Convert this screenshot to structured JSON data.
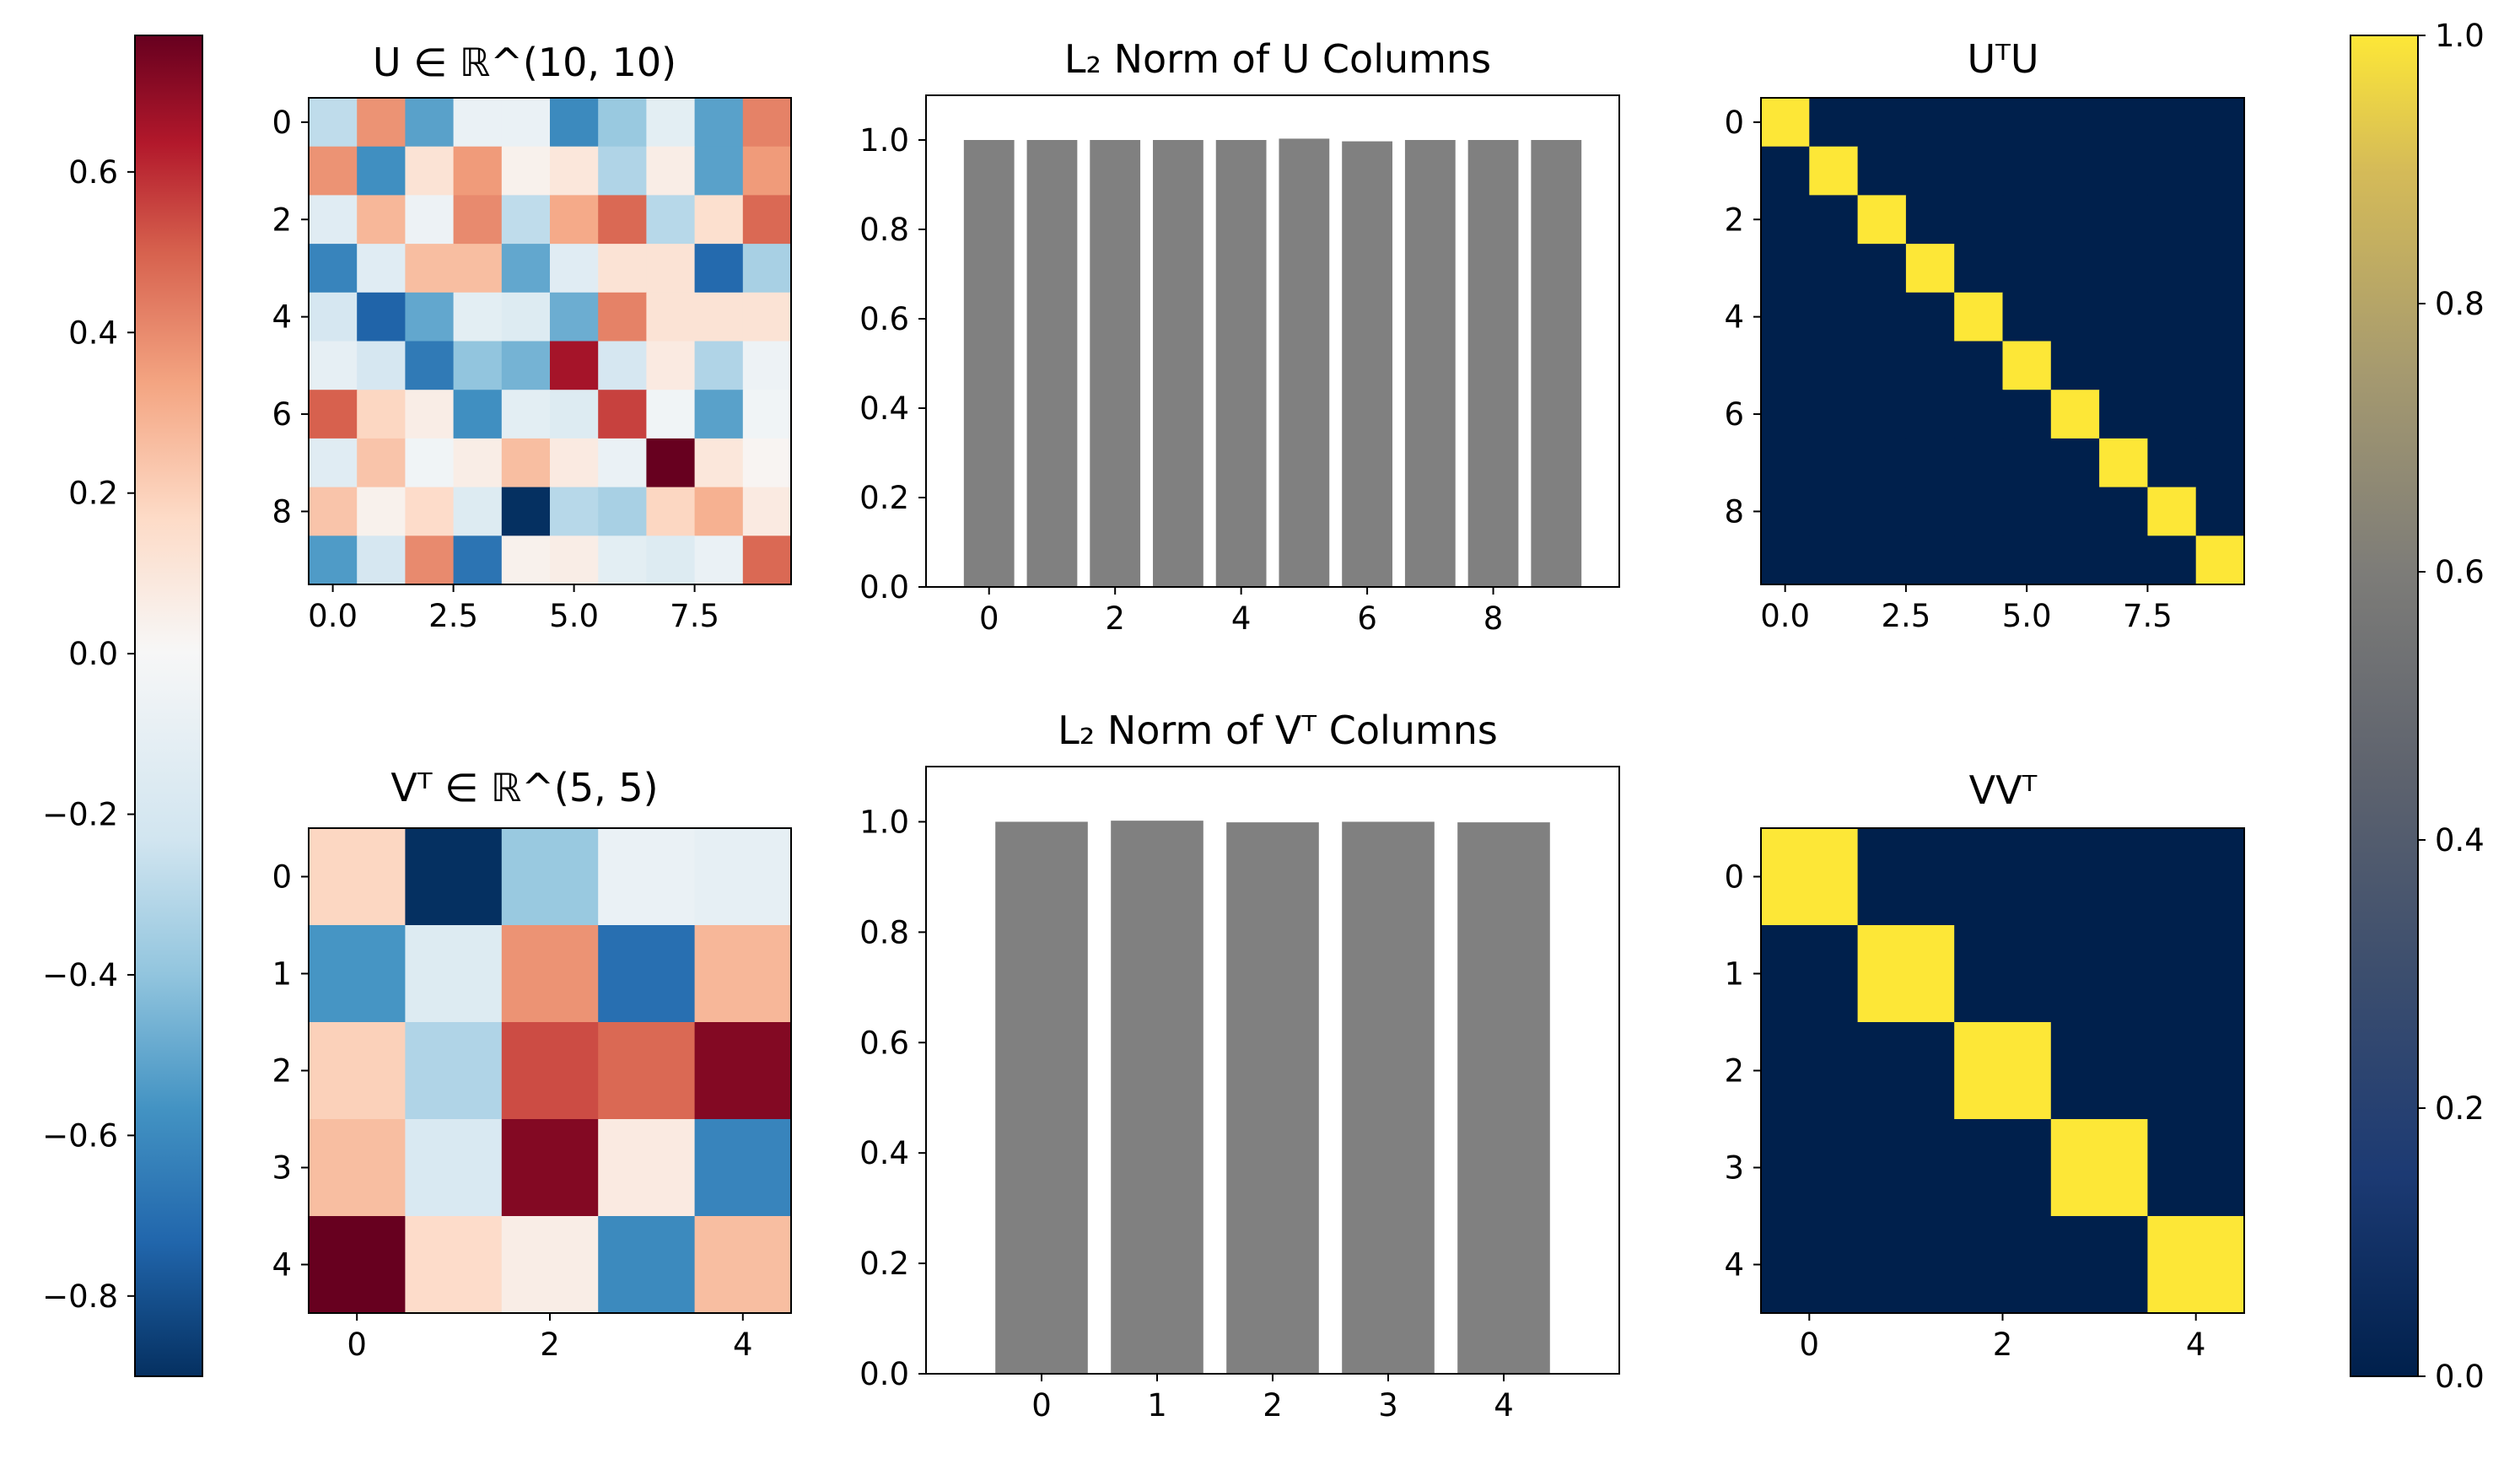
{
  "chart_data": [
    {
      "type": "heatmap",
      "title": "U ∈ ℝ^(10, 10)",
      "cmap": "RdBu_r",
      "vlim": [
        -0.9,
        0.77
      ],
      "xticks": [
        "0.0",
        "2.5",
        "5.0",
        "7.5"
      ],
      "yticks": [
        "0",
        "2",
        "4",
        "6",
        "8"
      ],
      "values": [
        [
          -0.28,
          0.38,
          -0.52,
          -0.08,
          -0.08,
          -0.6,
          -0.38,
          -0.12,
          -0.52,
          0.42
        ],
        [
          0.38,
          -0.58,
          0.12,
          0.36,
          0.04,
          0.1,
          -0.32,
          0.06,
          -0.52,
          0.36
        ],
        [
          -0.14,
          0.28,
          -0.06,
          0.4,
          -0.28,
          0.32,
          0.48,
          -0.3,
          0.14,
          0.48
        ],
        [
          -0.62,
          -0.14,
          0.26,
          0.26,
          -0.5,
          -0.14,
          0.12,
          0.12,
          -0.72,
          -0.34
        ],
        [
          -0.2,
          -0.74,
          -0.5,
          -0.12,
          -0.16,
          -0.48,
          0.42,
          0.12,
          0.12,
          0.12
        ],
        [
          -0.1,
          -0.2,
          -0.66,
          -0.4,
          -0.46,
          0.66,
          -0.2,
          0.08,
          -0.32,
          -0.06
        ],
        [
          0.5,
          0.18,
          0.06,
          -0.58,
          -0.12,
          -0.16,
          0.56,
          -0.04,
          -0.52,
          -0.04
        ],
        [
          -0.14,
          0.24,
          -0.04,
          0.06,
          0.26,
          0.08,
          -0.08,
          0.77,
          0.1,
          0.02
        ],
        [
          0.24,
          0.04,
          0.16,
          -0.16,
          -0.9,
          -0.3,
          -0.34,
          0.18,
          0.3,
          0.08
        ],
        [
          -0.54,
          -0.2,
          0.4,
          -0.68,
          0.04,
          0.06,
          -0.12,
          -0.16,
          -0.08,
          0.48
        ]
      ]
    },
    {
      "type": "bar",
      "title": "L₂ Norm of U Columns",
      "categories": [
        0,
        1,
        2,
        3,
        4,
        5,
        6,
        7,
        8,
        9
      ],
      "values": [
        1.0,
        1.0,
        1.0,
        1.0,
        1.0,
        1.003,
        0.997,
        1.0,
        1.0,
        1.0
      ],
      "xticks": [
        "0",
        "2",
        "4",
        "6",
        "8"
      ],
      "yticks": [
        "0.0",
        "0.2",
        "0.4",
        "0.6",
        "0.8",
        "1.0"
      ],
      "ylim": [
        0,
        1.1
      ],
      "color": "#808080"
    },
    {
      "type": "heatmap",
      "title": "UᵀU",
      "cmap": "cividis",
      "vlim": [
        0,
        1
      ],
      "xticks": [
        "0.0",
        "2.5",
        "5.0",
        "7.5"
      ],
      "yticks": [
        "0",
        "2",
        "4",
        "6",
        "8"
      ],
      "size": 10,
      "diagonal": 1.0,
      "offdiagonal": 0.0
    },
    {
      "type": "heatmap",
      "title": "Vᵀ ∈ ℝ^(5, 5)",
      "cmap": "RdBu_r",
      "vlim": [
        -0.9,
        0.77
      ],
      "xticks": [
        "0",
        "2",
        "4"
      ],
      "yticks": [
        "0",
        "1",
        "2",
        "3",
        "4"
      ],
      "values": [
        [
          0.18,
          -0.9,
          -0.38,
          -0.08,
          -0.1
        ],
        [
          -0.56,
          -0.16,
          0.38,
          -0.7,
          0.28
        ],
        [
          0.2,
          -0.32,
          0.54,
          0.48,
          0.72
        ],
        [
          0.26,
          -0.18,
          0.72,
          0.08,
          -0.62
        ],
        [
          0.77,
          0.16,
          0.06,
          -0.6,
          0.26
        ]
      ]
    },
    {
      "type": "bar",
      "title": "L₂ Norm of Vᵀ Columns",
      "categories": [
        0,
        1,
        2,
        3,
        4
      ],
      "values": [
        1.0,
        1.002,
        0.999,
        1.0,
        0.999
      ],
      "xticks": [
        "0",
        "1",
        "2",
        "3",
        "4"
      ],
      "yticks": [
        "0.0",
        "0.2",
        "0.4",
        "0.6",
        "0.8",
        "1.0"
      ],
      "ylim": [
        0,
        1.1
      ],
      "color": "#808080"
    },
    {
      "type": "heatmap",
      "title": "VVᵀ",
      "cmap": "cividis",
      "vlim": [
        0,
        1
      ],
      "xticks": [
        "0",
        "2",
        "4"
      ],
      "yticks": [
        "0",
        "1",
        "2",
        "3",
        "4"
      ],
      "size": 5,
      "diagonal": 1.0,
      "offdiagonal": 0.0
    }
  ],
  "colorbars": [
    {
      "cmap": "RdBu_r",
      "vlim": [
        -0.9,
        0.77
      ],
      "ticks": [
        "0.6",
        "0.4",
        "0.2",
        "0.0",
        "−0.2",
        "−0.4",
        "−0.6",
        "−0.8"
      ],
      "tick_values": [
        0.6,
        0.4,
        0.2,
        0.0,
        -0.2,
        -0.4,
        -0.6,
        -0.8
      ]
    },
    {
      "cmap": "cividis",
      "vlim": [
        0,
        1
      ],
      "ticks": [
        "1.0",
        "0.8",
        "0.6",
        "0.4",
        "0.2",
        "0.0"
      ],
      "tick_values": [
        1.0,
        0.8,
        0.6,
        0.4,
        0.2,
        0.0
      ]
    }
  ],
  "colors": {
    "bar": "#808080",
    "cividis_low": "#00204c",
    "cividis_high": "#fde737"
  }
}
